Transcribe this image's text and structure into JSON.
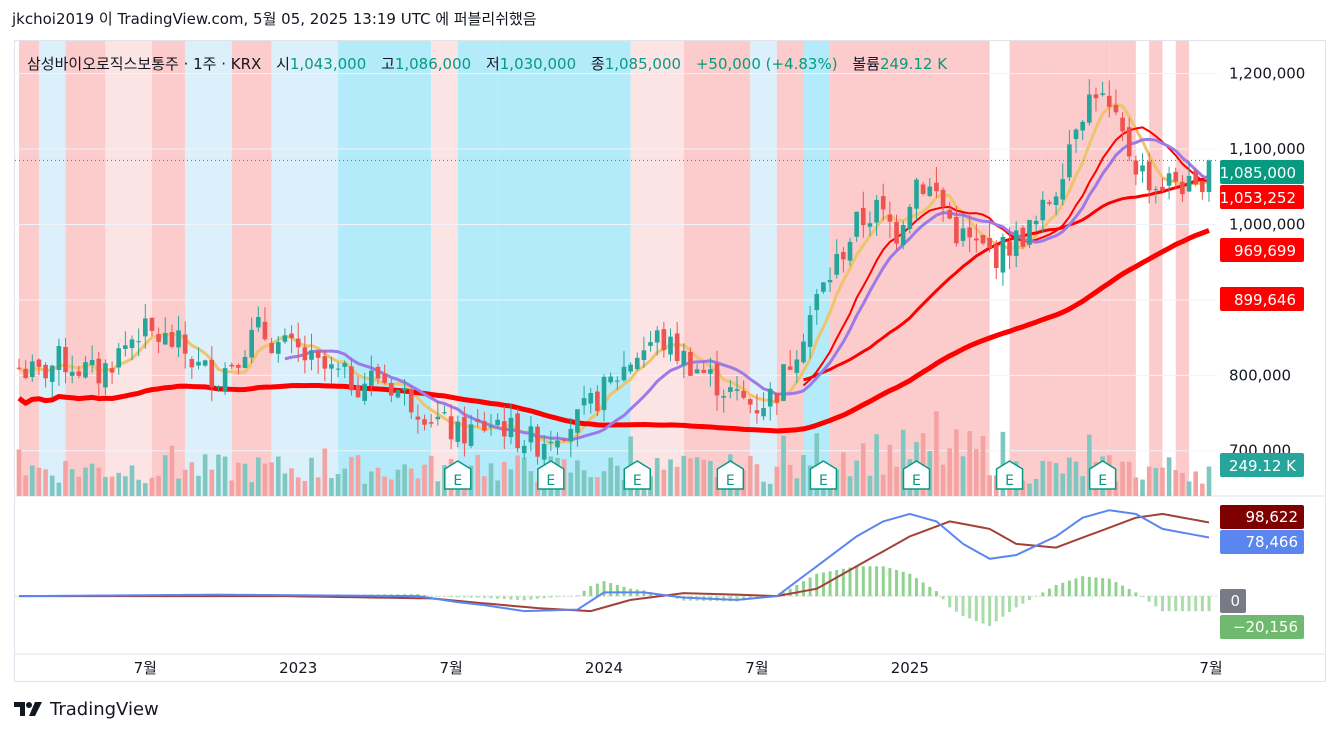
{
  "header": {
    "publish_line": "jkchoi2019 이 TradingView.com, 5월 05, 2025 13:19 UTC 에 퍼블리쉬했음"
  },
  "legend": {
    "symbol": "삼성바이오로직스보통주 · 1주 · KRX",
    "o_label": "시",
    "o_value": "1,043,000",
    "h_label": "고",
    "h_value": "1,086,000",
    "l_label": "저",
    "l_value": "1,030,000",
    "c_label": "종",
    "c_value": "1,085,000",
    "change": "+50,000 (+4.83%)",
    "vol_label": "볼륨",
    "vol_value": "249.12 K"
  },
  "footer": {
    "brand": "TradingView"
  },
  "colors": {
    "up": "#26a69a",
    "down": "#ef5350",
    "ma_short": "#f0c36d",
    "ma_mid": "#ff0000",
    "ma_long": "#ff0000",
    "ma_purple": "#9c7ae8",
    "macd_line": "#5b86f0",
    "signal_line": "#a0413a",
    "bg_red": "#fccbcb",
    "bg_lightred": "#fde4e4",
    "bg_cyan": "#b3ebfa",
    "bg_lightblue": "#dcf0fb",
    "earnings": "#089981"
  },
  "chart_data": {
    "type": "candlestick",
    "price_axis": {
      "ticks": [
        "1,200,000",
        "1,100,000",
        "1,000,000",
        "900,000",
        "800,000",
        "700,000"
      ],
      "ylim": [
        640000,
        1230000
      ]
    },
    "time_axis": {
      "ticks": [
        "7월",
        "2023",
        "7월",
        "2024",
        "7월",
        "2025",
        "7월"
      ]
    },
    "badges": [
      {
        "text": "1,085,000",
        "color": "#089981",
        "value": 1085000
      },
      {
        "text": "1,053,252",
        "color": "#ff0000",
        "value": 1053252
      },
      {
        "text": "969,699",
        "color": "#ff0000",
        "value": 969699
      },
      {
        "text": "899,646",
        "color": "#ff0000",
        "value": 899646
      },
      {
        "text": "249.12 K",
        "color": "#26a69a",
        "value": null
      }
    ],
    "earnings_label": "E",
    "earnings_marker_count": 8,
    "macd": {
      "badges": [
        {
          "text": "98,622",
          "color": "#7f0000"
        },
        {
          "text": "78,466",
          "color": "#5b86f0"
        },
        {
          "text": "0",
          "color": "#787b86"
        },
        {
          "text": "−20,156",
          "color": "#6fba6f"
        }
      ],
      "ylim": [
        -60000,
        130000
      ]
    },
    "price_anchors": [
      [
        0,
        810000
      ],
      [
        3,
        800000
      ],
      [
        6,
        820000
      ],
      [
        9,
        810000
      ],
      [
        12,
        800000
      ],
      [
        15,
        830000
      ],
      [
        18,
        860000
      ],
      [
        21,
        850000
      ],
      [
        24,
        840000
      ],
      [
        27,
        810000
      ],
      [
        30,
        800000
      ],
      [
        33,
        830000
      ],
      [
        36,
        860000
      ],
      [
        39,
        840000
      ],
      [
        42,
        830000
      ],
      [
        45,
        810000
      ],
      [
        48,
        800000
      ],
      [
        51,
        790000
      ],
      [
        54,
        800000
      ],
      [
        57,
        780000
      ],
      [
        60,
        760000
      ],
      [
        63,
        740000
      ],
      [
        66,
        720000
      ],
      [
        69,
        730000
      ],
      [
        72,
        740000
      ],
      [
        75,
        720000
      ],
      [
        78,
        710000
      ],
      [
        81,
        730000
      ],
      [
        84,
        740000
      ],
      [
        87,
        770000
      ],
      [
        90,
        800000
      ],
      [
        93,
        830000
      ],
      [
        96,
        850000
      ],
      [
        99,
        830000
      ],
      [
        102,
        810000
      ],
      [
        105,
        790000
      ],
      [
        108,
        770000
      ],
      [
        111,
        760000
      ],
      [
        114,
        780000
      ],
      [
        117,
        840000
      ],
      [
        120,
        900000
      ],
      [
        123,
        950000
      ],
      [
        126,
        1000000
      ],
      [
        129,
        1020000
      ],
      [
        132,
        990000
      ],
      [
        135,
        1060000
      ],
      [
        138,
        1040000
      ],
      [
        141,
        990000
      ],
      [
        144,
        970000
      ],
      [
        147,
        960000
      ],
      [
        150,
        980000
      ],
      [
        153,
        1000000
      ],
      [
        156,
        1050000
      ],
      [
        159,
        1140000
      ],
      [
        162,
        1180000
      ],
      [
        165,
        1130000
      ],
      [
        168,
        1080000
      ],
      [
        171,
        1050000
      ],
      [
        174,
        1060000
      ],
      [
        177,
        1040000
      ],
      [
        179,
        1085000
      ]
    ],
    "macd_anchors": [
      [
        0,
        0
      ],
      [
        30,
        2000
      ],
      [
        60,
        0
      ],
      [
        66,
        -8000
      ],
      [
        70,
        -12000
      ],
      [
        76,
        -20000
      ],
      [
        84,
        -18000
      ],
      [
        88,
        5000
      ],
      [
        94,
        5000
      ],
      [
        100,
        -2000
      ],
      [
        108,
        -5000
      ],
      [
        114,
        0
      ],
      [
        120,
        40000
      ],
      [
        126,
        80000
      ],
      [
        130,
        100000
      ],
      [
        134,
        110000
      ],
      [
        138,
        100000
      ],
      [
        142,
        70000
      ],
      [
        146,
        50000
      ],
      [
        150,
        55000
      ],
      [
        156,
        80000
      ],
      [
        160,
        105000
      ],
      [
        164,
        115000
      ],
      [
        168,
        110000
      ],
      [
        172,
        90000
      ],
      [
        179,
        78466
      ]
    ],
    "signal_anchors": [
      [
        0,
        0
      ],
      [
        40,
        0
      ],
      [
        62,
        -3000
      ],
      [
        68,
        -8000
      ],
      [
        78,
        -16000
      ],
      [
        86,
        -20000
      ],
      [
        92,
        -5000
      ],
      [
        100,
        4000
      ],
      [
        108,
        2000
      ],
      [
        114,
        0
      ],
      [
        120,
        10000
      ],
      [
        126,
        40000
      ],
      [
        134,
        80000
      ],
      [
        140,
        100000
      ],
      [
        146,
        90000
      ],
      [
        150,
        70000
      ],
      [
        156,
        65000
      ],
      [
        162,
        85000
      ],
      [
        168,
        105000
      ],
      [
        172,
        110000
      ],
      [
        179,
        98622
      ]
    ]
  }
}
